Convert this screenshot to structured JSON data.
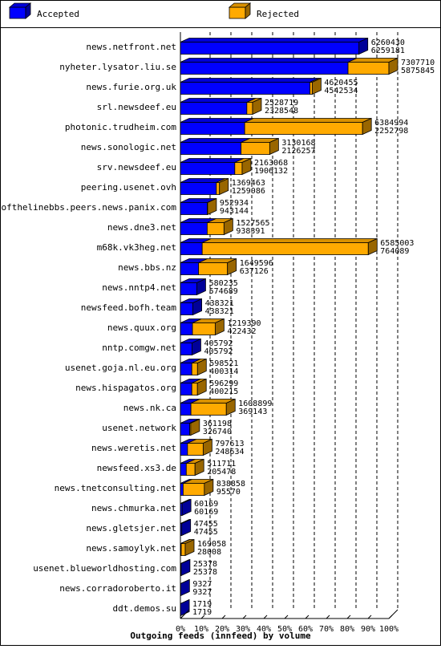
{
  "chart_data": {
    "type": "bar",
    "title": "",
    "xlabel": "Outgoing feeds (innfeed) by volume",
    "ylabel": "",
    "xlim": [
      0,
      100
    ],
    "x_ticks": [
      "0%",
      "10%",
      "20%",
      "30%",
      "40%",
      "50%",
      "60%",
      "70%",
      "80%",
      "90%",
      "100%"
    ],
    "grid": true,
    "legend_position": "top",
    "stacked": true,
    "orientation": "horizontal",
    "legend": [
      {
        "name": "Accepted",
        "color": "#0000ff"
      },
      {
        "name": "Rejected",
        "color": "#ffaa00"
      }
    ],
    "categories": [
      "news.netfront.net",
      "nyheter.lysator.liu.se",
      "news.furie.org.uk",
      "srl.newsdeef.eu",
      "photonic.trudheim.com",
      "news.sonologic.net",
      "srv.newsdeef.eu",
      "peering.usenet.ovh",
      "endofthelinebbs.peers.news.panix.com",
      "news.dne3.net",
      "m68k.vk3heg.net",
      "news.bbs.nz",
      "news.nntp4.net",
      "newsfeed.bofh.team",
      "news.quux.org",
      "nntp.comgw.net",
      "usenet.goja.nl.eu.org",
      "news.hispagatos.org",
      "news.nk.ca",
      "usenet.network",
      "news.weretis.net",
      "newsfeed.xs3.de",
      "news.tnetconsulting.net",
      "news.chmurka.net",
      "news.gletsjer.net",
      "news.samoylyk.net",
      "usenet.blueworldhosting.com",
      "news.corradoroberto.it",
      "ddt.demos.su"
    ],
    "offered": [
      6260430,
      7307710,
      4620455,
      2528719,
      6384994,
      3130168,
      2163068,
      1369463,
      952934,
      1527565,
      6585003,
      1649596,
      580235,
      438321,
      1219390,
      405792,
      598521,
      596299,
      1608899,
      361198,
      797613,
      511711,
      838858,
      60169,
      47455,
      169058,
      25378,
      9327,
      1719
    ],
    "accepted": [
      6259181,
      5875845,
      4542534,
      2328548,
      2252798,
      2126257,
      1906132,
      1259086,
      943144,
      938391,
      764089,
      637126,
      574689,
      438321,
      422432,
      405792,
      400314,
      400215,
      369143,
      326740,
      248634,
      205478,
      95570,
      60169,
      47455,
      28008,
      25378,
      9327,
      1719
    ]
  }
}
